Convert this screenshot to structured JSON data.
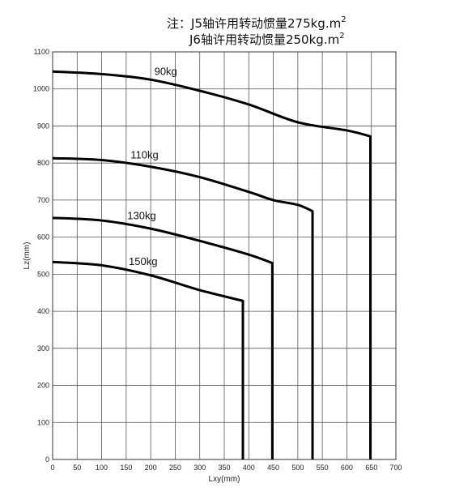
{
  "notes": {
    "line1_prefix": "注：",
    "line1_main": "J5轴许用转动惯量275kg.m",
    "line1_sup": "2",
    "line2_main": "J6轴许用转动惯量250kg.m",
    "line2_sup": "2"
  },
  "chart_data": {
    "type": "line",
    "title": "",
    "xlabel": "Lxy(mm)",
    "ylabel": "Lz(mm)",
    "xlim": [
      0,
      700
    ],
    "ylim": [
      0,
      1100
    ],
    "x_ticks": [
      0,
      50,
      100,
      150,
      200,
      250,
      300,
      350,
      400,
      450,
      500,
      550,
      600,
      650,
      700
    ],
    "y_ticks": [
      0,
      100,
      200,
      300,
      400,
      500,
      600,
      700,
      800,
      900,
      1000,
      1100
    ],
    "grid": true,
    "series": [
      {
        "name": "90kg",
        "x": [
          0,
          100,
          200,
          300,
          400,
          500,
          600,
          648,
          648
        ],
        "y": [
          1047,
          1040,
          1025,
          995,
          958,
          910,
          888,
          872,
          0
        ]
      },
      {
        "name": "110kg",
        "x": [
          0,
          100,
          200,
          300,
          400,
          450,
          500,
          530,
          530
        ],
        "y": [
          813,
          808,
          790,
          762,
          722,
          700,
          687,
          670,
          0
        ]
      },
      {
        "name": "130kg",
        "x": [
          0,
          100,
          200,
          300,
          400,
          448,
          448
        ],
        "y": [
          652,
          645,
          623,
          590,
          553,
          530,
          0
        ]
      },
      {
        "name": "150kg",
        "x": [
          0,
          100,
          200,
          300,
          388,
          388
        ],
        "y": [
          533,
          524,
          497,
          457,
          428,
          0
        ]
      }
    ]
  }
}
